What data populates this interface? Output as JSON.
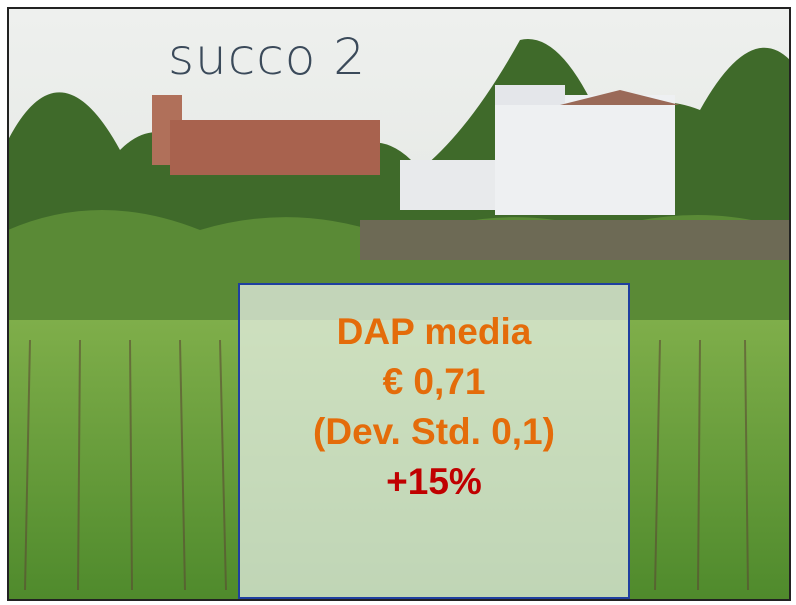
{
  "title": "succo 2",
  "box": {
    "lines": [
      "DAP media",
      "€ 0,71",
      "(Dev. Std. 0,1)",
      "+15%"
    ]
  }
}
